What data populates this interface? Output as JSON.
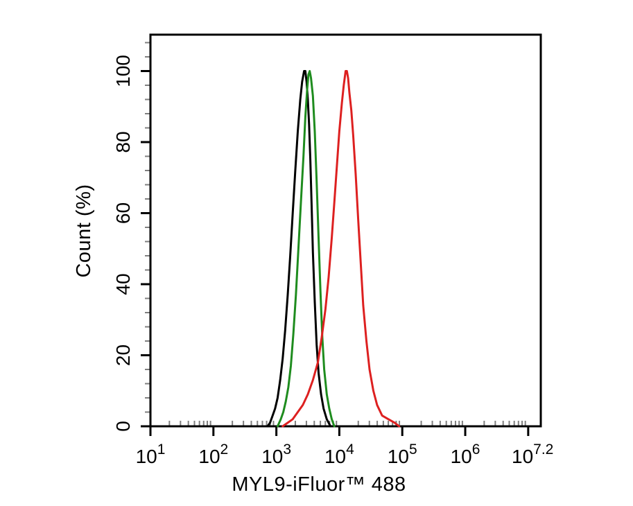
{
  "figure": {
    "background": "#ffffff",
    "plot_border_color": "#000000",
    "minor_tick_color": "#7f7f7f"
  },
  "chart_data": {
    "type": "line",
    "subtype": "flow-cytometry-histogram-overlay",
    "title": "",
    "xlabel": "MYL9-iFluor™ 488",
    "ylabel": "Count (%)",
    "x_scale": "log10",
    "x_range_exponent": [
      1,
      7.2
    ],
    "x_major_tick_exponents": [
      1,
      2,
      3,
      4,
      5,
      6,
      7
    ],
    "x_tick_labels": [
      {
        "base": "10",
        "exp": "1",
        "at_exponent": 1
      },
      {
        "base": "10",
        "exp": "2",
        "at_exponent": 2
      },
      {
        "base": "10",
        "exp": "3",
        "at_exponent": 3
      },
      {
        "base": "10",
        "exp": "4",
        "at_exponent": 4
      },
      {
        "base": "10",
        "exp": "5",
        "at_exponent": 5
      },
      {
        "base": "10",
        "exp": "6",
        "at_exponent": 6
      },
      {
        "base": "10",
        "exp": "7.2",
        "at_exponent": 7.07
      }
    ],
    "y_range": [
      0,
      110
    ],
    "y_major_ticks": [
      0,
      20,
      40,
      60,
      80,
      100
    ],
    "y_minor_tick_step": 4,
    "legend": "none",
    "grid": false,
    "series": [
      {
        "name": "black-curve",
        "color": "#000000",
        "points": [
          [
            2.86,
            0
          ],
          [
            2.9,
            1
          ],
          [
            2.94,
            3
          ],
          [
            2.98,
            5
          ],
          [
            3.02,
            8
          ],
          [
            3.06,
            13
          ],
          [
            3.1,
            19
          ],
          [
            3.14,
            27
          ],
          [
            3.18,
            37
          ],
          [
            3.22,
            48
          ],
          [
            3.26,
            60
          ],
          [
            3.3,
            72
          ],
          [
            3.34,
            83
          ],
          [
            3.38,
            92
          ],
          [
            3.41,
            97
          ],
          [
            3.44,
            100
          ],
          [
            3.46,
            100
          ],
          [
            3.48,
            97
          ],
          [
            3.5,
            92
          ],
          [
            3.52,
            85
          ],
          [
            3.54,
            75
          ],
          [
            3.56,
            62
          ],
          [
            3.58,
            49
          ],
          [
            3.61,
            35
          ],
          [
            3.64,
            23
          ],
          [
            3.67,
            15
          ],
          [
            3.71,
            9
          ],
          [
            3.75,
            5
          ],
          [
            3.8,
            2
          ],
          [
            3.86,
            0
          ]
        ]
      },
      {
        "name": "green-curve",
        "color": "#1e8c1e",
        "points": [
          [
            3.02,
            0
          ],
          [
            3.07,
            2
          ],
          [
            3.11,
            4
          ],
          [
            3.15,
            7
          ],
          [
            3.19,
            11
          ],
          [
            3.23,
            17
          ],
          [
            3.27,
            26
          ],
          [
            3.31,
            37
          ],
          [
            3.35,
            50
          ],
          [
            3.39,
            63
          ],
          [
            3.43,
            76
          ],
          [
            3.46,
            87
          ],
          [
            3.49,
            95
          ],
          [
            3.51,
            99
          ],
          [
            3.53,
            100
          ],
          [
            3.55,
            98
          ],
          [
            3.58,
            93
          ],
          [
            3.61,
            83
          ],
          [
            3.64,
            69
          ],
          [
            3.67,
            53
          ],
          [
            3.7,
            38
          ],
          [
            3.73,
            25
          ],
          [
            3.76,
            16
          ],
          [
            3.8,
            9
          ],
          [
            3.84,
            5
          ],
          [
            3.88,
            2
          ],
          [
            3.92,
            0
          ]
        ]
      },
      {
        "name": "red-curve",
        "color": "#dd2020",
        "points": [
          [
            3.1,
            0
          ],
          [
            3.18,
            1
          ],
          [
            3.26,
            2
          ],
          [
            3.34,
            4
          ],
          [
            3.42,
            6
          ],
          [
            3.5,
            9
          ],
          [
            3.58,
            13
          ],
          [
            3.66,
            18
          ],
          [
            3.72,
            25
          ],
          [
            3.78,
            33
          ],
          [
            3.83,
            42
          ],
          [
            3.88,
            53
          ],
          [
            3.92,
            63
          ],
          [
            3.96,
            73
          ],
          [
            4.0,
            83
          ],
          [
            4.04,
            91
          ],
          [
            4.07,
            96
          ],
          [
            4.1,
            100
          ],
          [
            4.12,
            100
          ],
          [
            4.14,
            98
          ],
          [
            4.16,
            94
          ],
          [
            4.19,
            89
          ],
          [
            4.22,
            82
          ],
          [
            4.26,
            71
          ],
          [
            4.3,
            58
          ],
          [
            4.34,
            46
          ],
          [
            4.38,
            34
          ],
          [
            4.43,
            24
          ],
          [
            4.48,
            16
          ],
          [
            4.54,
            10
          ],
          [
            4.6,
            6
          ],
          [
            4.68,
            3
          ],
          [
            4.78,
            2
          ],
          [
            4.88,
            1
          ],
          [
            4.95,
            0
          ]
        ]
      }
    ]
  }
}
